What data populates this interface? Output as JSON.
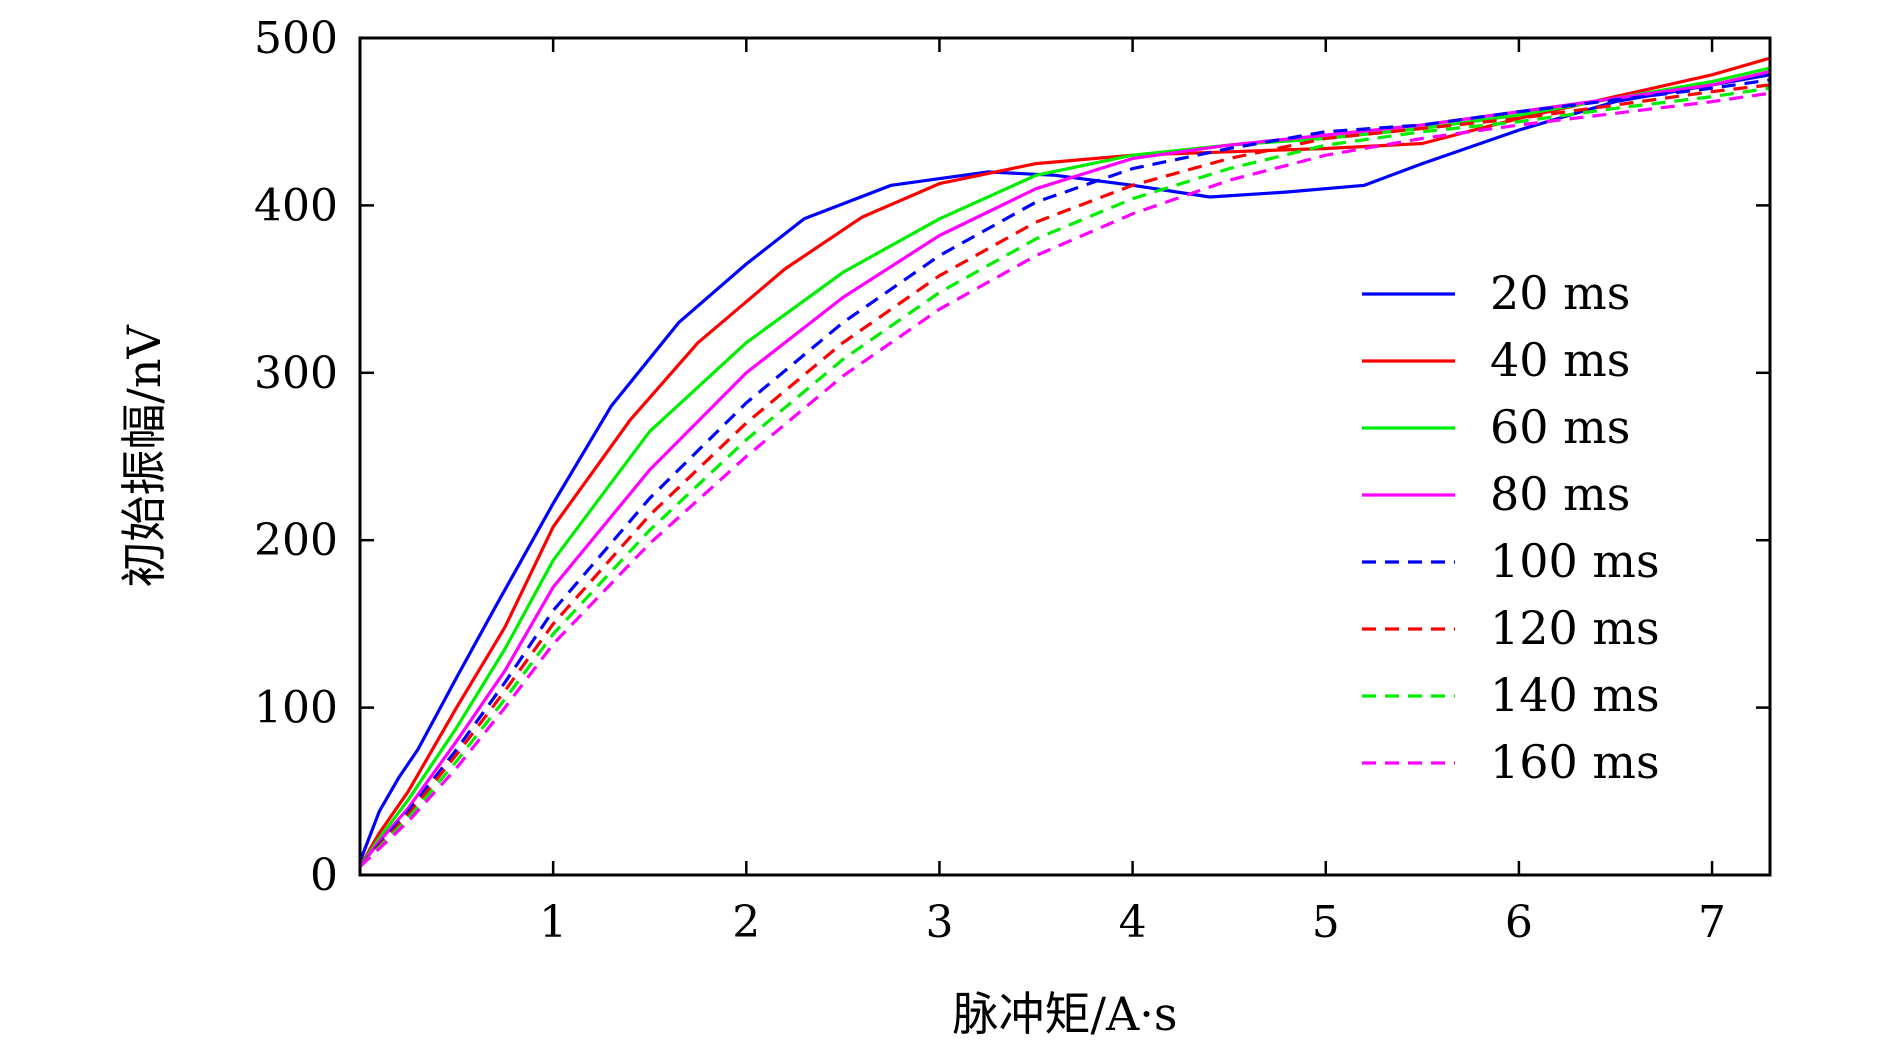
{
  "chart_data": {
    "type": "line",
    "xlabel": "脉冲矩/A·s",
    "ylabel": "初始振幅/nV",
    "xlim": [
      0,
      7.3
    ],
    "ylim": [
      0,
      500
    ],
    "xticks": [
      1,
      2,
      3,
      4,
      5,
      6,
      7
    ],
    "yticks": [
      0,
      100,
      200,
      300,
      400,
      500
    ],
    "grid": false,
    "legend_position": "right",
    "series": [
      {
        "name": "20 ms",
        "color": "#0000ff",
        "dash": "solid",
        "x": [
          0,
          0.1,
          0.2,
          0.3,
          0.5,
          0.7,
          1.0,
          1.3,
          1.65,
          2.0,
          2.3,
          2.75,
          3.25,
          3.6,
          4.0,
          4.4,
          4.8,
          5.2,
          5.5,
          6.0,
          6.5,
          7.0,
          7.3
        ],
        "y": [
          8,
          38,
          58,
          75,
          118,
          160,
          222,
          280,
          330,
          365,
          392,
          412,
          420,
          418,
          412,
          405,
          408,
          412,
          425,
          445,
          462,
          472,
          478
        ]
      },
      {
        "name": "40 ms",
        "color": "#ff0000",
        "dash": "solid",
        "x": [
          0,
          0.1,
          0.25,
          0.5,
          0.75,
          1.0,
          1.4,
          1.75,
          2.2,
          2.6,
          3.0,
          3.5,
          4.0,
          4.5,
          5.0,
          5.5,
          6.0,
          6.5,
          7.0,
          7.3
        ],
        "y": [
          5,
          25,
          50,
          100,
          148,
          208,
          272,
          318,
          362,
          393,
          413,
          425,
          430,
          432,
          434,
          437,
          452,
          465,
          478,
          488
        ]
      },
      {
        "name": "60 ms",
        "color": "#00ee00",
        "dash": "solid",
        "x": [
          0,
          0.1,
          0.25,
          0.5,
          0.75,
          1.0,
          1.5,
          2.0,
          2.5,
          3.0,
          3.5,
          4.0,
          4.5,
          5.0,
          5.5,
          6.0,
          6.5,
          7.0,
          7.3
        ],
        "y": [
          5,
          22,
          45,
          88,
          135,
          188,
          265,
          318,
          360,
          392,
          418,
          430,
          436,
          440,
          446,
          454,
          464,
          474,
          482
        ]
      },
      {
        "name": "80 ms",
        "color": "#ff00ff",
        "dash": "solid",
        "x": [
          0,
          0.1,
          0.25,
          0.5,
          0.75,
          1.0,
          1.5,
          2.0,
          2.5,
          3.0,
          3.5,
          4.0,
          4.5,
          5.0,
          5.5,
          6.0,
          6.5,
          7.0,
          7.3
        ],
        "y": [
          5,
          20,
          40,
          80,
          122,
          172,
          242,
          300,
          345,
          382,
          410,
          428,
          436,
          442,
          448,
          456,
          464,
          472,
          480
        ]
      },
      {
        "name": "100 ms",
        "color": "#0000ff",
        "dash": "dashed",
        "x": [
          0,
          0.25,
          0.5,
          0.75,
          1.0,
          1.5,
          2.0,
          2.5,
          3.0,
          3.5,
          4.0,
          4.5,
          5.0,
          5.5,
          6.0,
          6.5,
          7.0,
          7.3
        ],
        "y": [
          5,
          38,
          75,
          115,
          158,
          225,
          282,
          330,
          370,
          402,
          422,
          434,
          444,
          448,
          456,
          463,
          470,
          475
        ]
      },
      {
        "name": "120 ms",
        "color": "#ff0000",
        "dash": "dashed",
        "x": [
          0,
          0.25,
          0.5,
          0.75,
          1.0,
          1.5,
          2.0,
          2.5,
          3.0,
          3.5,
          4.0,
          4.5,
          5.0,
          5.5,
          6.0,
          6.5,
          7.0,
          7.3
        ],
        "y": [
          5,
          36,
          72,
          110,
          150,
          215,
          270,
          318,
          358,
          390,
          412,
          428,
          440,
          446,
          452,
          460,
          468,
          472
        ]
      },
      {
        "name": "140 ms",
        "color": "#00ee00",
        "dash": "dashed",
        "x": [
          0,
          0.25,
          0.5,
          0.75,
          1.0,
          1.5,
          2.0,
          2.5,
          3.0,
          3.5,
          4.0,
          4.5,
          5.0,
          5.5,
          6.0,
          6.5,
          7.0,
          7.3
        ],
        "y": [
          5,
          34,
          68,
          105,
          144,
          206,
          260,
          308,
          348,
          380,
          404,
          422,
          436,
          444,
          450,
          458,
          465,
          470
        ]
      },
      {
        "name": "160 ms",
        "color": "#ff00ff",
        "dash": "dashed",
        "x": [
          0,
          0.25,
          0.5,
          0.75,
          1.0,
          1.5,
          2.0,
          2.5,
          3.0,
          3.5,
          4.0,
          4.5,
          5.0,
          5.5,
          6.0,
          6.5,
          7.0,
          7.3
        ],
        "y": [
          5,
          32,
          64,
          100,
          138,
          198,
          250,
          298,
          338,
          370,
          395,
          415,
          430,
          440,
          448,
          455,
          462,
          467
        ]
      }
    ]
  }
}
